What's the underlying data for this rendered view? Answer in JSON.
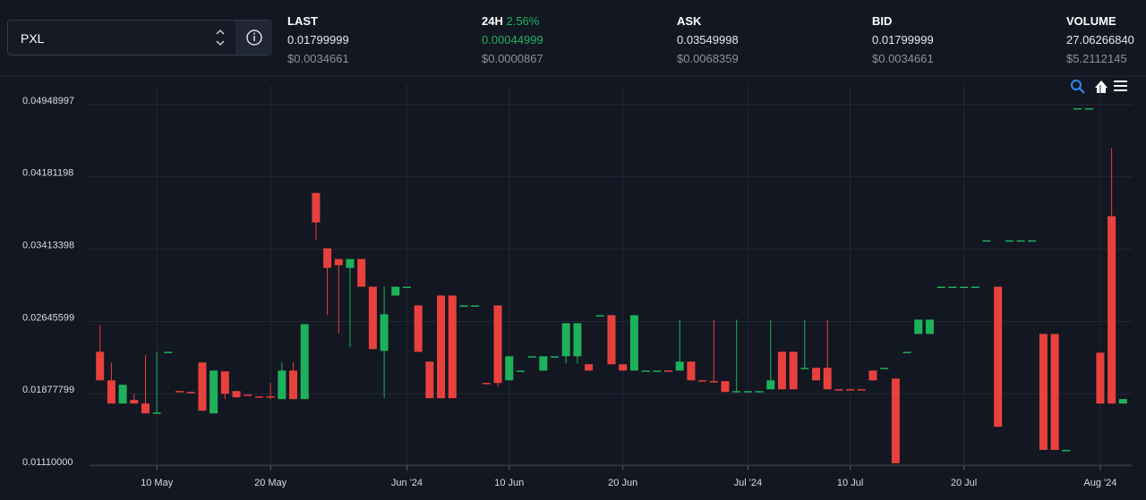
{
  "header": {
    "pair": "PXL",
    "stats": [
      {
        "label": "LAST",
        "value": "0.01799999",
        "usd": "$0.0034661"
      },
      {
        "label": "24H",
        "change": "2.56%",
        "value": "0.00044999",
        "usd": "$0.0000867"
      },
      {
        "label": "ASK",
        "value": "0.03549998",
        "usd": "$0.0068359"
      },
      {
        "label": "BID",
        "value": "0.01799999",
        "usd": "$0.0034661"
      },
      {
        "label": "VOLUME",
        "value": "27.06266840",
        "usd": "$5.2112145"
      }
    ]
  },
  "chart_data": {
    "type": "candlestick",
    "up_color": "#1db25a",
    "down_color": "#e8413d",
    "grid": true,
    "x": [
      "2024-05-05",
      "2024-05-06",
      "2024-05-07",
      "2024-05-08",
      "2024-05-09",
      "2024-05-10",
      "2024-05-11",
      "2024-05-12",
      "2024-05-13",
      "2024-05-14",
      "2024-05-15",
      "2024-05-16",
      "2024-05-17",
      "2024-05-18",
      "2024-05-19",
      "2024-05-20",
      "2024-05-21",
      "2024-05-22",
      "2024-05-23",
      "2024-05-24",
      "2024-05-25",
      "2024-05-26",
      "2024-05-27",
      "2024-05-28",
      "2024-05-29",
      "2024-05-30",
      "2024-05-31",
      "2024-06-01",
      "2024-06-02",
      "2024-06-03",
      "2024-06-04",
      "2024-06-05",
      "2024-06-06",
      "2024-06-07",
      "2024-06-08",
      "2024-06-09",
      "2024-06-10",
      "2024-06-11",
      "2024-06-12",
      "2024-06-13",
      "2024-06-14",
      "2024-06-15",
      "2024-06-16",
      "2024-06-17",
      "2024-06-18",
      "2024-06-19",
      "2024-06-20",
      "2024-06-21",
      "2024-06-22",
      "2024-06-23",
      "2024-06-24",
      "2024-06-25",
      "2024-06-26",
      "2024-06-27",
      "2024-06-28",
      "2024-06-29",
      "2024-06-30",
      "2024-07-01",
      "2024-07-02",
      "2024-07-03",
      "2024-07-04",
      "2024-07-05",
      "2024-07-06",
      "2024-07-07",
      "2024-07-08",
      "2024-07-09",
      "2024-07-10",
      "2024-07-11",
      "2024-07-12",
      "2024-07-13",
      "2024-07-14",
      "2024-07-15",
      "2024-07-16",
      "2024-07-17",
      "2024-07-18",
      "2024-07-19",
      "2024-07-20",
      "2024-07-21",
      "2024-07-22",
      "2024-07-23",
      "2024-07-24",
      "2024-07-25",
      "2024-07-26",
      "2024-07-27",
      "2024-07-28",
      "2024-07-29",
      "2024-07-30",
      "2024-07-31",
      "2024-08-01",
      "2024-08-02",
      "2024-08-03"
    ],
    "open": [
      0.02285,
      0.01982,
      0.01736,
      0.01774,
      0.01736,
      0.01631,
      0.02285,
      0.01869,
      0.0186,
      0.02172,
      0.01631,
      0.02077,
      0.01868,
      0.01831,
      0.01812,
      0.01812,
      0.01783,
      0.02086,
      0.01783,
      0.03973,
      0.03385,
      0.03271,
      0.03177,
      0.03271,
      0.02977,
      0.02295,
      0.02883,
      0.02977,
      0.02778,
      0.02181,
      0.02883,
      0.02883,
      0.02778,
      0.02778,
      0.01955,
      0.02778,
      0.01982,
      0.02086,
      0.02238,
      0.02086,
      0.02238,
      0.02238,
      0.02238,
      0.02153,
      0.02674,
      0.02674,
      0.02153,
      0.02086,
      0.02086,
      0.02086,
      0.02087,
      0.02086,
      0.02181,
      0.01983,
      0.01974,
      0.01973,
      0.01868,
      0.01868,
      0.01868,
      0.01887,
      0.02285,
      0.02285,
      0.02115,
      0.02115,
      0.02115,
      0.01888,
      0.01888,
      0.01888,
      0.02086,
      0.02115,
      0.02001,
      0.02285,
      0.02475,
      0.02475,
      0.02977,
      0.02977,
      0.02977,
      0.02977,
      0.0347,
      0.02977,
      0.0347,
      0.0347,
      0.0347,
      0.02475,
      0.02475,
      0.01243,
      0.04873,
      0.04873,
      0.02276,
      0.03726,
      0.01736
    ],
    "high": [
      0.0257,
      0.02172,
      0.01935,
      0.0184,
      0.02248,
      0.02285,
      0.02285,
      0.01869,
      0.0186,
      0.02172,
      0.02086,
      0.02077,
      0.01868,
      0.01831,
      0.01812,
      0.01954,
      0.02172,
      0.02172,
      0.02579,
      0.03973,
      0.03385,
      0.03271,
      0.03271,
      0.03271,
      0.02977,
      0.02977,
      0.02977,
      0.02977,
      0.02778,
      0.02181,
      0.02883,
      0.02883,
      0.02778,
      0.02778,
      0.01955,
      0.02778,
      0.02238,
      0.02086,
      0.02238,
      0.02238,
      0.02238,
      0.02589,
      0.02589,
      0.02153,
      0.02674,
      0.02674,
      0.02153,
      0.02674,
      0.02086,
      0.02086,
      0.02087,
      0.02627,
      0.02181,
      0.01983,
      0.02627,
      0.01973,
      0.02627,
      0.01868,
      0.01868,
      0.02627,
      0.02285,
      0.02285,
      0.02627,
      0.02115,
      0.02627,
      0.01888,
      0.01888,
      0.01888,
      0.02086,
      0.02115,
      0.02001,
      0.02285,
      0.02627,
      0.02627,
      0.02977,
      0.02977,
      0.02977,
      0.02977,
      0.0347,
      0.02977,
      0.0347,
      0.0347,
      0.0347,
      0.02475,
      0.02475,
      0.01243,
      0.04873,
      0.04873,
      0.02276,
      0.04447,
      0.01783
    ],
    "low": [
      0.01982,
      0.01736,
      0.01736,
      0.01736,
      0.01631,
      0.01631,
      0.02285,
      0.01868,
      0.01859,
      0.0166,
      0.01631,
      0.01783,
      0.01802,
      0.0183,
      0.01811,
      0.01783,
      0.01783,
      0.01783,
      0.01783,
      0.0347,
      0.02674,
      0.02485,
      0.02333,
      0.02977,
      0.02314,
      0.01793,
      0.02883,
      0.02977,
      0.02285,
      0.01793,
      0.01793,
      0.01793,
      0.02778,
      0.02778,
      0.01954,
      0.01916,
      0.01982,
      0.02086,
      0.02238,
      0.02086,
      0.02238,
      0.02162,
      0.02162,
      0.02086,
      0.02674,
      0.02153,
      0.02086,
      0.02086,
      0.02086,
      0.02086,
      0.02086,
      0.02086,
      0.01982,
      0.01982,
      0.01973,
      0.01859,
      0.01868,
      0.01868,
      0.01868,
      0.01887,
      0.01887,
      0.01887,
      0.02115,
      0.01982,
      0.01887,
      0.01887,
      0.01887,
      0.01887,
      0.01982,
      0.02115,
      0.01101,
      0.02285,
      0.02475,
      0.02475,
      0.02977,
      0.02977,
      0.02977,
      0.02977,
      0.0347,
      0.01489,
      0.0347,
      0.0347,
      0.0347,
      0.01243,
      0.01243,
      0.01243,
      0.04873,
      0.04873,
      0.01736,
      0.01736,
      0.01736
    ],
    "close": [
      0.01982,
      0.01736,
      0.01935,
      0.01736,
      0.01631,
      0.01641,
      0.02285,
      0.01868,
      0.01859,
      0.0166,
      0.02086,
      0.0184,
      0.01802,
      0.0183,
      0.01811,
      0.01811,
      0.02086,
      0.01783,
      0.02579,
      0.0366,
      0.03177,
      0.03205,
      0.03271,
      0.02977,
      0.02314,
      0.02684,
      0.02977,
      0.02977,
      0.02285,
      0.01793,
      0.01793,
      0.01793,
      0.02778,
      0.02778,
      0.01954,
      0.01954,
      0.02238,
      0.02086,
      0.02238,
      0.02238,
      0.02238,
      0.02589,
      0.02589,
      0.02086,
      0.02674,
      0.02153,
      0.02086,
      0.02674,
      0.02086,
      0.02086,
      0.02086,
      0.02181,
      0.01982,
      0.01982,
      0.01973,
      0.01859,
      0.01868,
      0.01868,
      0.01868,
      0.01982,
      0.01887,
      0.01887,
      0.02115,
      0.01982,
      0.01887,
      0.01887,
      0.01887,
      0.01887,
      0.01982,
      0.02115,
      0.01101,
      0.02285,
      0.02627,
      0.02627,
      0.02977,
      0.02977,
      0.02977,
      0.02977,
      0.0347,
      0.01489,
      0.0347,
      0.0347,
      0.0347,
      0.01243,
      0.01243,
      0.01243,
      0.04873,
      0.04873,
      0.01736,
      0.01736,
      0.01783
    ],
    "xlim": [
      "2024-05-04",
      "2024-08-04"
    ],
    "xticks": [
      {
        "value": "2024-05-10",
        "label": "10 May"
      },
      {
        "value": "2024-05-20",
        "label": "20 May"
      },
      {
        "value": "2024-06-01",
        "label": "Jun '24"
      },
      {
        "value": "2024-06-10",
        "label": "10 Jun"
      },
      {
        "value": "2024-06-20",
        "label": "20 Jun"
      },
      {
        "value": "2024-07-01",
        "label": "Jul '24"
      },
      {
        "value": "2024-07-10",
        "label": "10 Jul"
      },
      {
        "value": "2024-07-20",
        "label": "20 Jul"
      },
      {
        "value": "2024-08-01",
        "label": "Aug '24"
      }
    ],
    "ylim": [
      0.0111,
      0.04948997
    ],
    "yticks": [
      {
        "value": 0.0111,
        "label": "0.01110000"
      },
      0.01877799,
      0.02645599,
      0.03413398,
      0.04181198,
      0.04948997
    ]
  }
}
